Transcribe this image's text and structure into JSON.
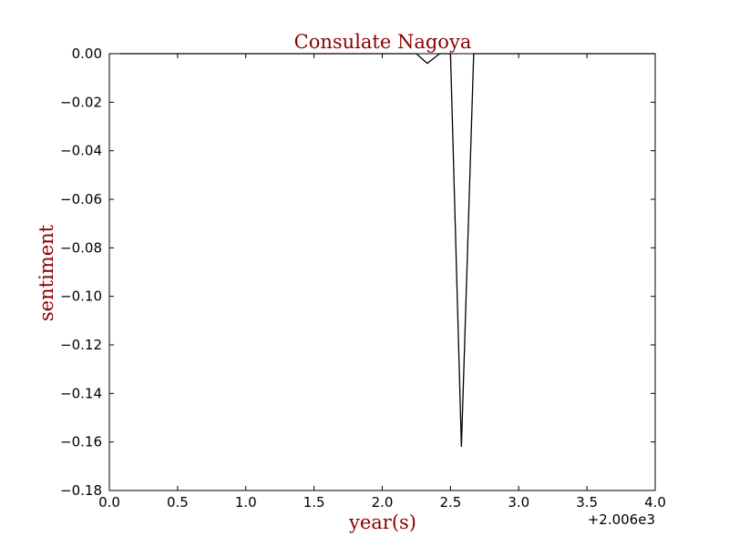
{
  "chart_data": {
    "type": "line",
    "title": "Consulate Nagoya",
    "xlabel": "year(s)",
    "ylabel": "sentiment",
    "x_offset_label": "+2.006e3",
    "xlim": [
      0.0,
      4.0
    ],
    "ylim": [
      -0.18,
      0.0
    ],
    "x_ticks": [
      0.0,
      0.5,
      1.0,
      1.5,
      2.0,
      2.5,
      3.0,
      3.5,
      4.0
    ],
    "x_tick_labels": [
      "0.0",
      "0.5",
      "1.0",
      "1.5",
      "2.0",
      "2.5",
      "3.0",
      "3.5",
      "4.0"
    ],
    "y_ticks": [
      0.0,
      -0.02,
      -0.04,
      -0.06,
      -0.08,
      -0.1,
      -0.12,
      -0.14,
      -0.16,
      -0.18
    ],
    "y_tick_labels": [
      "0.00",
      "−0.02",
      "−0.04",
      "−0.06",
      "−0.08",
      "−0.10",
      "−0.12",
      "−0.14",
      "−0.16",
      "−0.18"
    ],
    "grid": false,
    "colors": {
      "line": "#000000",
      "title": "#8b0000",
      "axis_label": "#8b0000"
    },
    "series": [
      {
        "x": [
          0.08,
          2.25,
          2.33,
          2.42,
          2.5,
          2.58,
          2.67,
          4.0
        ],
        "y": [
          0.0,
          0.0,
          -0.004,
          0.0,
          0.0,
          -0.162,
          0.0,
          0.0
        ]
      }
    ]
  }
}
